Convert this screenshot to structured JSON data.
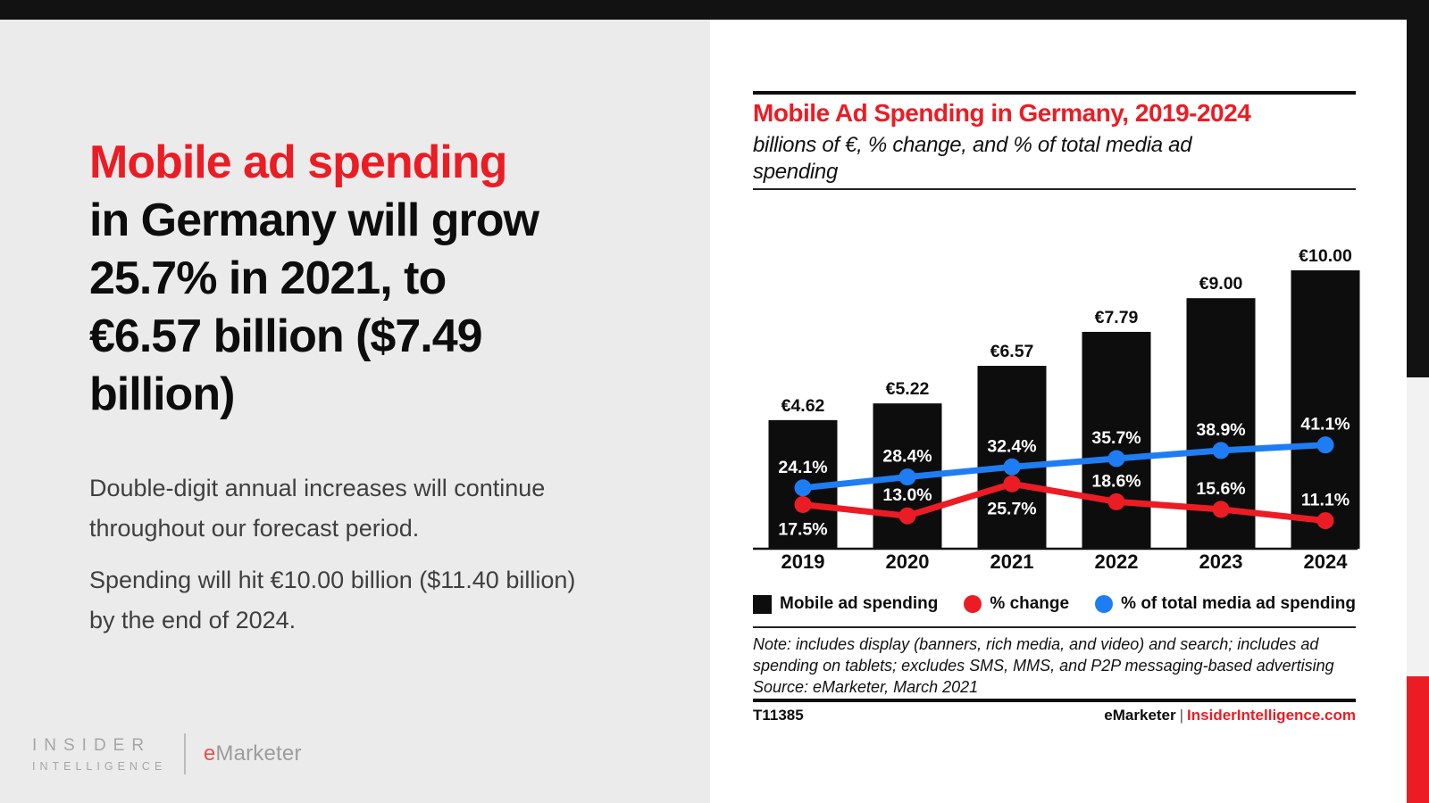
{
  "left_panel": {
    "headline_red": "Mobile ad spending",
    "headline_black": "in Germany will grow\n25.7% in 2021, to\n€6.57 billion ($7.49\nbillion)",
    "paragraph1": "Double-digit annual increases will continue\nthroughout our forecast period.",
    "paragraph2": "Spending will hit €10.00 billion ($11.40 billion)\nby the end of 2024.",
    "logo": {
      "line1": "INSIDER",
      "line2": "INTELLIGENCE",
      "brand_e": "e",
      "brand_rest": "Marketer"
    }
  },
  "chart_panel": {
    "note": "Note: includes display (banners, rich media, and video) and search; includes ad\nspending on tablets; excludes SMS, MMS, and P2P messaging-based advertising\nSource: eMarketer, March 2021",
    "chart_id": "T11385",
    "brand": "eMarketer",
    "separator": "|",
    "brand_site": "InsiderIntelligence.com"
  },
  "chart_data": {
    "type": "bar+line",
    "title": "Mobile Ad Spending in Germany, 2019-2024",
    "subtitle": "billions of €, % change, and % of total media ad\nspending",
    "categories": [
      "2019",
      "2020",
      "2021",
      "2022",
      "2023",
      "2024"
    ],
    "series": [
      {
        "name": "Mobile ad spending",
        "type": "bar",
        "unit": "billions of €",
        "values": [
          4.62,
          5.22,
          6.57,
          7.79,
          9.0,
          10.0
        ],
        "labels": [
          "€4.62",
          "€5.22",
          "€6.57",
          "€7.79",
          "€9.00",
          "€10.00"
        ],
        "color": "#0d0d0d"
      },
      {
        "name": "% change",
        "type": "line",
        "values": [
          17.5,
          13.0,
          25.7,
          18.6,
          15.6,
          11.1
        ],
        "labels": [
          "17.5%",
          "13.0%",
          "25.7%",
          "18.6%",
          "15.6%",
          "11.1%"
        ],
        "label_position": [
          "below",
          "above",
          "below",
          "above",
          "above",
          "above"
        ],
        "color": "#ec1c24"
      },
      {
        "name": "% of total media ad spending",
        "type": "line",
        "values": [
          24.1,
          28.4,
          32.4,
          35.7,
          38.9,
          41.1
        ],
        "labels": [
          "24.1%",
          "28.4%",
          "32.4%",
          "35.7%",
          "38.9%",
          "41.1%"
        ],
        "label_position": [
          "above",
          "above",
          "above",
          "above",
          "above",
          "above"
        ],
        "color": "#1e7df2"
      }
    ],
    "colors": {
      "bar": "#0d0d0d",
      "axis": "#111111"
    },
    "legend_position": "bottom",
    "axes": "value axes hidden; all values labeled on data points"
  }
}
